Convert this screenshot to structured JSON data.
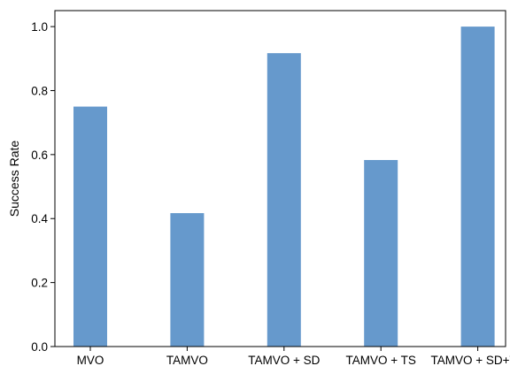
{
  "chart_data": {
    "type": "bar",
    "categories": [
      "MVO",
      "TAMVO",
      "TAMVO + SD",
      "TAMVO + TS",
      "TAMVO + SD+TS"
    ],
    "values": [
      0.75,
      0.417,
      0.917,
      0.583,
      1.0
    ],
    "title": "",
    "xlabel": "",
    "ylabel": "Success Rate",
    "ylim": [
      0.0,
      1.05
    ],
    "yticks": [
      "0.0",
      "0.2",
      "0.4",
      "0.6",
      "0.8",
      "1.0"
    ],
    "grid": false,
    "bar_color": "#6699cc"
  }
}
